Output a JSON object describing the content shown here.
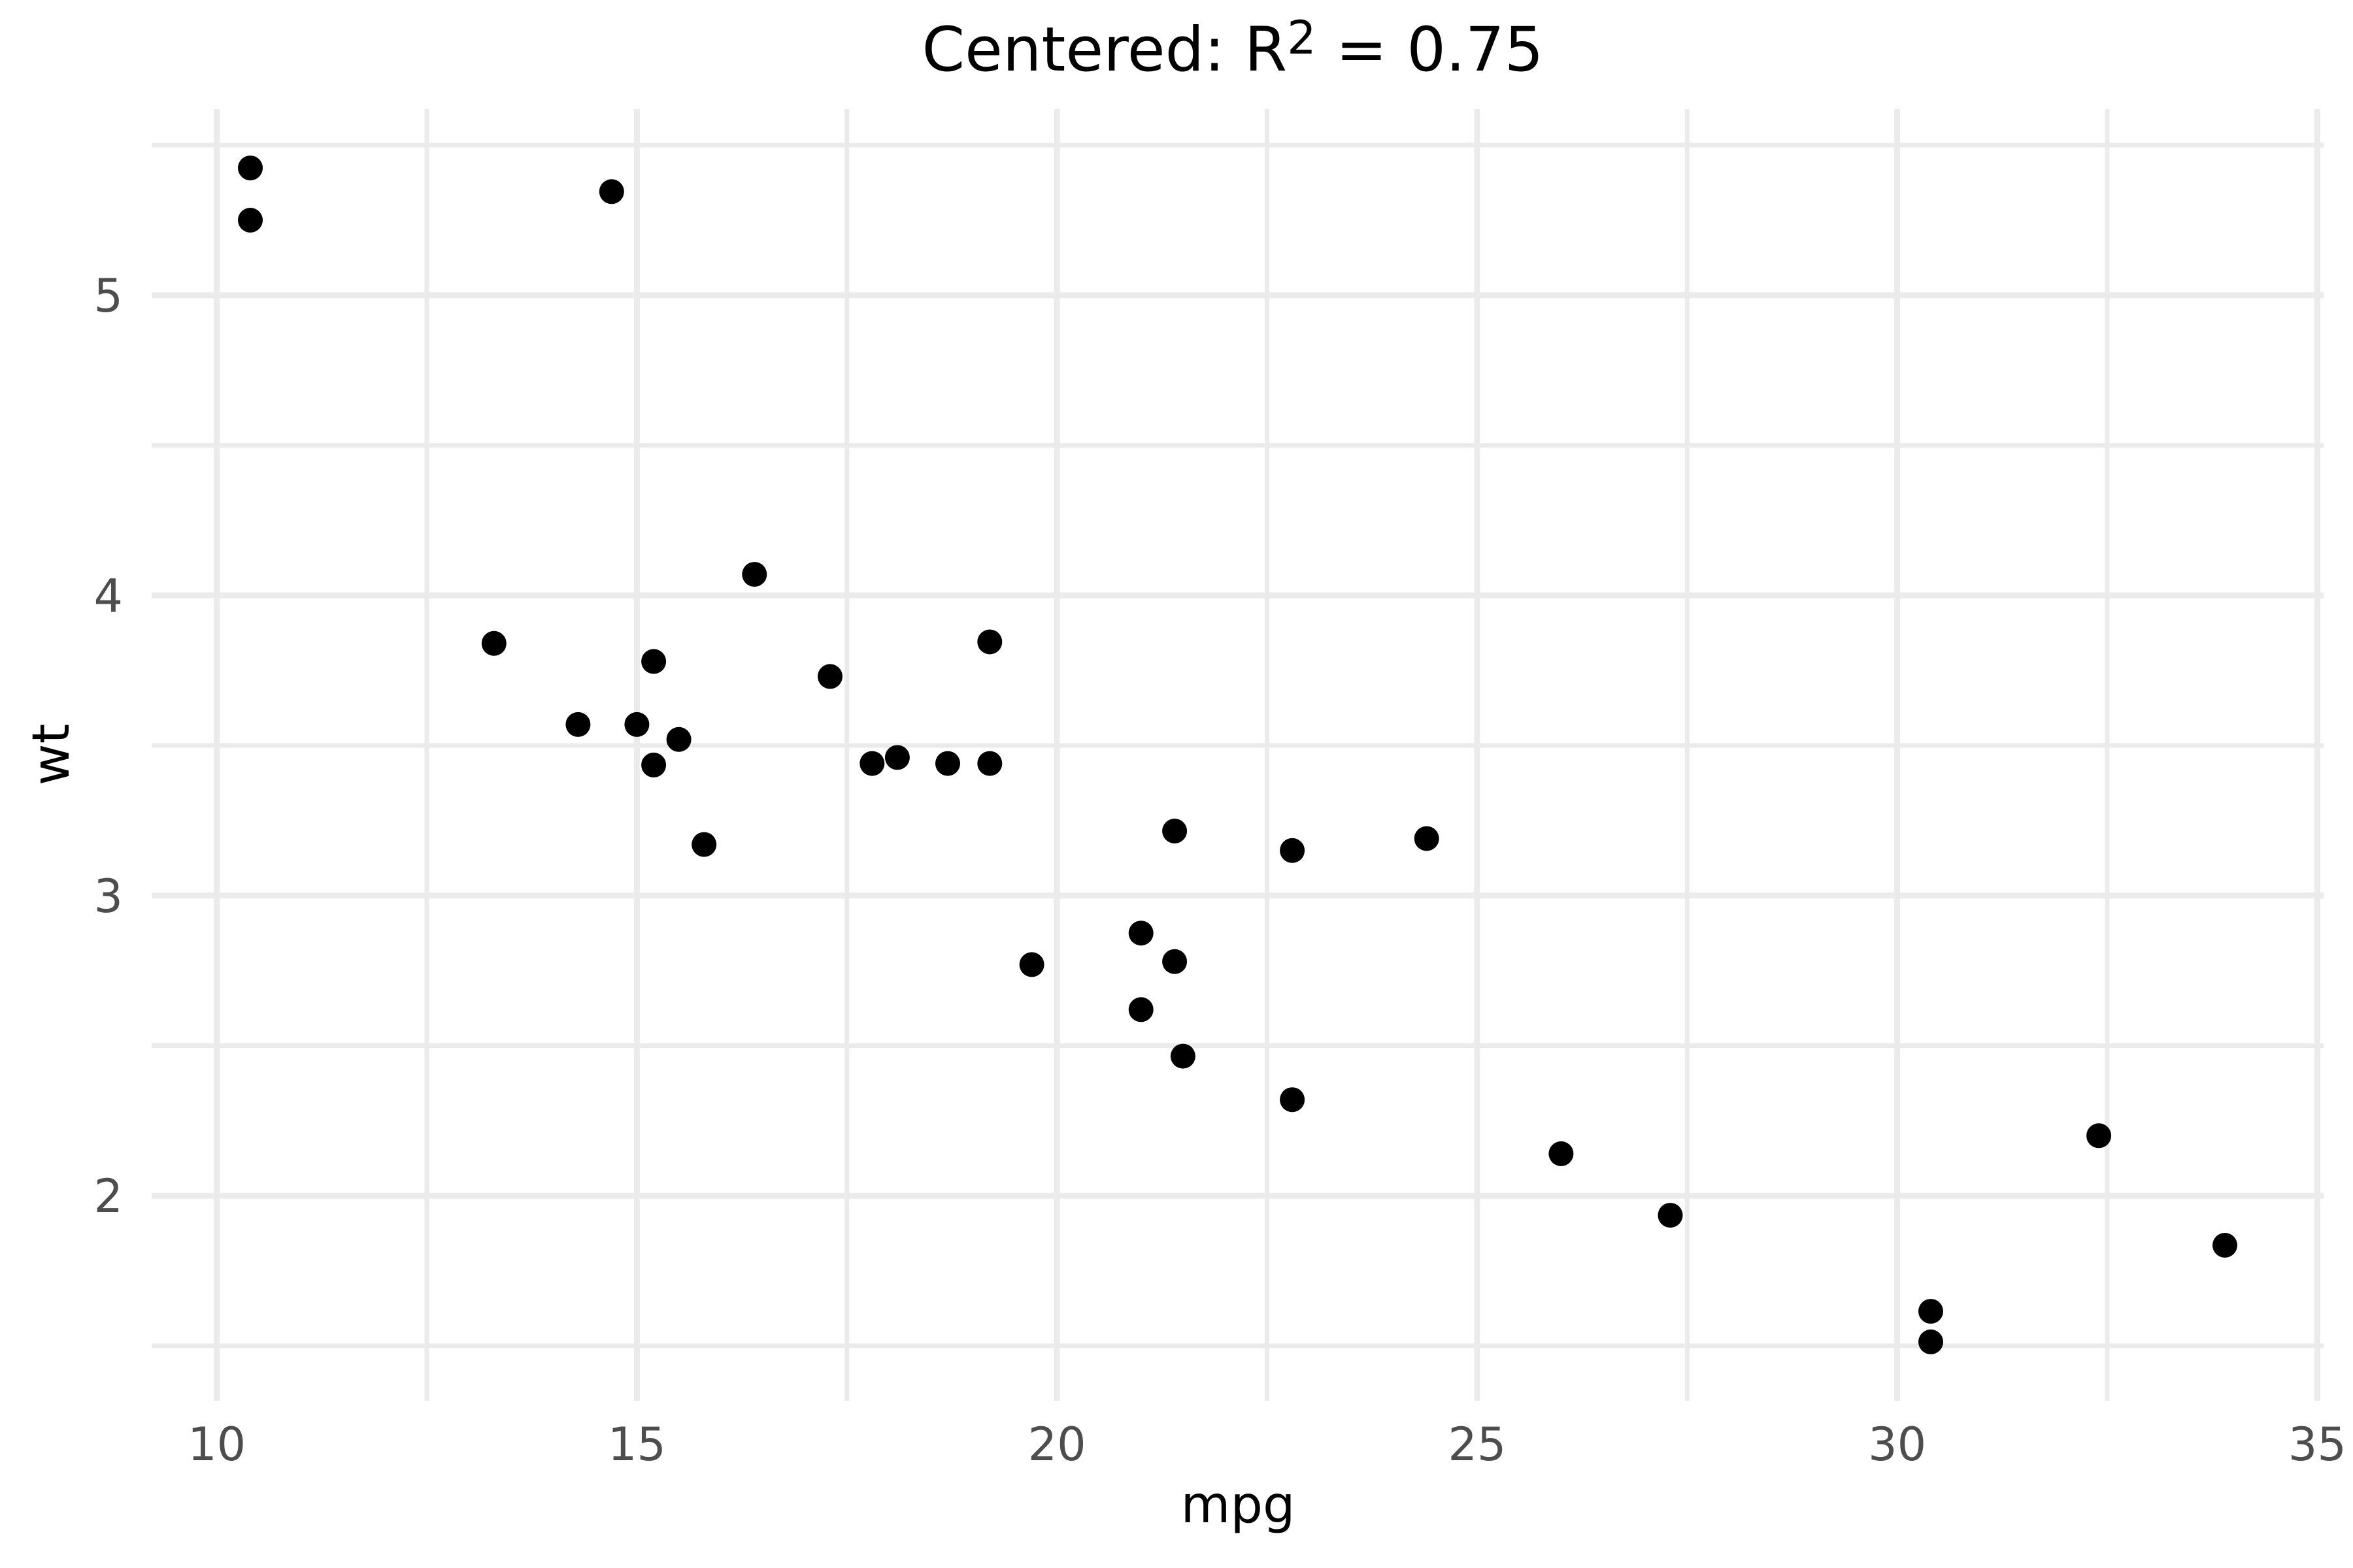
{
  "title": {
    "text": "Centered: R² = 0.75",
    "prefix": "Centered: R",
    "superscript": "2",
    "suffix": " = 0.75"
  },
  "axes": {
    "x": {
      "label": "mpg",
      "major_ticks": [
        10,
        15,
        20,
        25,
        30,
        35
      ],
      "minor_ticks": [
        12.5,
        17.5,
        22.5,
        27.5,
        32.5
      ],
      "range": [
        9.225,
        35.075
      ]
    },
    "y": {
      "label": "wt",
      "major_ticks": [
        2,
        3,
        4,
        5
      ],
      "minor_ticks": [
        1.5,
        2.5,
        3.5,
        4.5,
        5.5
      ],
      "range": [
        1.317,
        5.62
      ]
    }
  },
  "colors": {
    "background": "#FFFFFF",
    "grid": "#EBEBEB",
    "point": "#000000",
    "tick_label": "#4D4D4D",
    "axis_title": "#000000",
    "title": "#000000"
  },
  "chart_data": {
    "type": "scatter",
    "title": "Centered: R² = 0.75",
    "xlabel": "mpg",
    "ylabel": "wt",
    "xlim": [
      9.225,
      35.075
    ],
    "ylim": [
      1.317,
      5.62
    ],
    "grid": true,
    "legend": false,
    "point_radius_px": 19,
    "points": [
      [
        21.0,
        2.62
      ],
      [
        21.0,
        2.875
      ],
      [
        22.8,
        2.32
      ],
      [
        21.4,
        3.215
      ],
      [
        18.7,
        3.44
      ],
      [
        18.1,
        3.46
      ],
      [
        14.3,
        3.57
      ],
      [
        24.4,
        3.19
      ],
      [
        22.8,
        3.15
      ],
      [
        19.2,
        3.44
      ],
      [
        17.8,
        3.44
      ],
      [
        16.4,
        4.07
      ],
      [
        17.3,
        3.73
      ],
      [
        15.2,
        3.78
      ],
      [
        10.4,
        5.25
      ],
      [
        10.4,
        5.424
      ],
      [
        14.7,
        5.345
      ],
      [
        32.4,
        2.2
      ],
      [
        30.4,
        1.615
      ],
      [
        33.9,
        1.835
      ],
      [
        21.5,
        2.465
      ],
      [
        15.5,
        3.52
      ],
      [
        15.2,
        3.435
      ],
      [
        13.3,
        3.84
      ],
      [
        19.2,
        3.845
      ],
      [
        27.3,
        1.935
      ],
      [
        26.0,
        2.14
      ],
      [
        30.4,
        1.513
      ],
      [
        15.8,
        3.17
      ],
      [
        19.7,
        2.77
      ],
      [
        15.0,
        3.57
      ],
      [
        21.4,
        2.78
      ]
    ]
  }
}
